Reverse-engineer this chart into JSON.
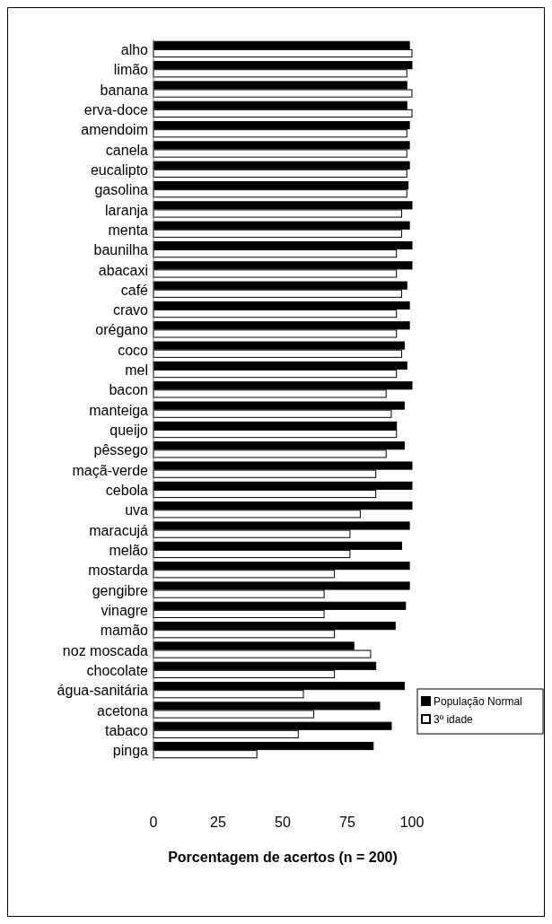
{
  "chart_data": {
    "type": "bar",
    "orientation": "horizontal",
    "xlabel": "Porcentagem de acertos (n = 200)",
    "categories": [
      "alho",
      "limão",
      "banana",
      "erva-doce",
      "amendoim",
      "canela",
      "eucalipto",
      "gasolina",
      "laranja",
      "menta",
      "baunilha",
      "abacaxi",
      "café",
      "cravo",
      "orégano",
      "coco",
      "mel",
      "bacon",
      "manteiga",
      "queijo",
      "pêssego",
      "maçã-verde",
      "cebola",
      "uva",
      "maracujá",
      "melão",
      "mostarda",
      "gengibre",
      "vinagre",
      "mamão",
      "noz moscada",
      "chocolate",
      "água-sanitária",
      "acetona",
      "tabaco",
      "pinga"
    ],
    "series": [
      {
        "name": "População Normal",
        "color": "#000000",
        "values": [
          99,
          100,
          98,
          98,
          99,
          99,
          99,
          98.5,
          100,
          99,
          100,
          100,
          98,
          99,
          99,
          97,
          98,
          100,
          97,
          94,
          97,
          100,
          100,
          100,
          99,
          96,
          99,
          99,
          97.5,
          93.5,
          77.5,
          86,
          97,
          87.5,
          92,
          85
        ]
      },
      {
        "name": "3º idade",
        "color": "#ffffff",
        "values": [
          100,
          98,
          100,
          100,
          98,
          98,
          98,
          98,
          96,
          96,
          94,
          94,
          96,
          94,
          94,
          96,
          94,
          90,
          92,
          94,
          90,
          86,
          86,
          80,
          76,
          76,
          70,
          66,
          66,
          70,
          84,
          70,
          58,
          62,
          56,
          40
        ]
      }
    ],
    "xlim": [
      0,
      100
    ],
    "xticks": [
      0,
      25,
      50,
      75,
      100
    ],
    "grid": false,
    "legend": "right"
  }
}
